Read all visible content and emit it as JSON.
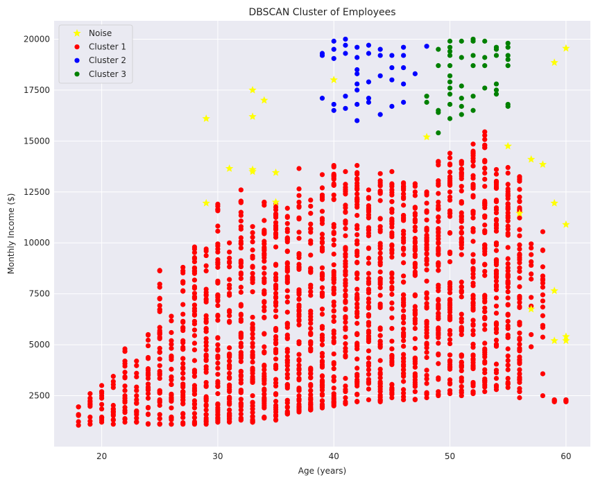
{
  "chart_data": {
    "type": "scatter",
    "title": "DBSCAN Cluster of Employees",
    "xlabel": "Age (years)",
    "ylabel": "Monthly Income ($)",
    "xlim": [
      15.9,
      62.1
    ],
    "ylim": [
      0,
      20900
    ],
    "xticks": [
      20,
      30,
      40,
      50,
      60
    ],
    "yticks": [
      2500,
      5000,
      7500,
      10000,
      12500,
      15000,
      17500,
      20000
    ],
    "grid": true,
    "legend_position": "top-left",
    "series": [
      {
        "name": "Noise",
        "marker": "star",
        "color": "#ffff00",
        "points": [
          [
            29,
            16100
          ],
          [
            33,
            17500
          ],
          [
            34,
            17000
          ],
          [
            33,
            16200
          ],
          [
            40,
            18000
          ],
          [
            31,
            13650
          ],
          [
            33,
            13500
          ],
          [
            33,
            13600
          ],
          [
            35,
            13450
          ],
          [
            29,
            11950
          ],
          [
            35,
            12000
          ],
          [
            48,
            15200
          ],
          [
            55,
            14750
          ],
          [
            57,
            14100
          ],
          [
            58,
            13850
          ],
          [
            56,
            11450
          ],
          [
            59,
            11950
          ],
          [
            60,
            10900
          ],
          [
            59,
            18850
          ],
          [
            60,
            19550
          ],
          [
            59,
            7650
          ],
          [
            57,
            6750
          ],
          [
            59,
            5200
          ],
          [
            60,
            5400
          ],
          [
            60,
            5200
          ]
        ]
      },
      {
        "name": "Cluster 1",
        "marker": "circle",
        "color": "#ff0000",
        "generated": {
          "xmin": 18,
          "xmax": 60,
          "upper_envelope": [
            [
              18,
              1950
            ],
            [
              19,
              2600
            ],
            [
              20,
              3000
            ],
            [
              21,
              3450
            ],
            [
              22,
              4800
            ],
            [
              23,
              4200
            ],
            [
              24,
              5500
            ],
            [
              25,
              8650
            ],
            [
              26,
              6400
            ],
            [
              27,
              8800
            ],
            [
              28,
              9800
            ],
            [
              29,
              9700
            ],
            [
              30,
              11900
            ],
            [
              31,
              10000
            ],
            [
              32,
              12600
            ],
            [
              33,
              10800
            ],
            [
              34,
              12000
            ],
            [
              35,
              11900
            ],
            [
              36,
              11700
            ],
            [
              37,
              13650
            ],
            [
              38,
              12100
            ],
            [
              39,
              13350
            ],
            [
              40,
              13800
            ],
            [
              41,
              13500
            ],
            [
              42,
              13800
            ],
            [
              43,
              12600
            ],
            [
              44,
              13400
            ],
            [
              45,
              13500
            ],
            [
              46,
              12950
            ],
            [
              47,
              12900
            ],
            [
              48,
              12500
            ],
            [
              49,
              14000
            ],
            [
              50,
              14400
            ],
            [
              51,
              14000
            ],
            [
              52,
              14850
            ],
            [
              53,
              15450
            ],
            [
              54,
              13600
            ],
            [
              55,
              13700
            ],
            [
              56,
              13250
            ],
            [
              57,
              9950
            ],
            [
              58,
              10550
            ],
            [
              59,
              2300
            ],
            [
              60,
              2300
            ]
          ],
          "lower_envelope": [
            [
              18,
              1050
            ],
            [
              19,
              1100
            ],
            [
              20,
              1200
            ],
            [
              21,
              1100
            ],
            [
              22,
              1200
            ],
            [
              23,
              1200
            ],
            [
              24,
              1100
            ],
            [
              25,
              1100
            ],
            [
              26,
              1100
            ],
            [
              27,
              1100
            ],
            [
              28,
              1100
            ],
            [
              29,
              1100
            ],
            [
              30,
              1200
            ],
            [
              31,
              1200
            ],
            [
              32,
              1300
            ],
            [
              33,
              1200
            ],
            [
              34,
              1400
            ],
            [
              35,
              1300
            ],
            [
              36,
              1600
            ],
            [
              37,
              1700
            ],
            [
              38,
              1800
            ],
            [
              39,
              1900
            ],
            [
              40,
              2000
            ],
            [
              41,
              2100
            ],
            [
              42,
              2200
            ],
            [
              43,
              2300
            ],
            [
              44,
              2200
            ],
            [
              45,
              2400
            ],
            [
              46,
              2300
            ],
            [
              47,
              2300
            ],
            [
              48,
              2400
            ],
            [
              49,
              2500
            ],
            [
              50,
              2600
            ],
            [
              51,
              2500
            ],
            [
              52,
              2600
            ],
            [
              53,
              2700
            ],
            [
              54,
              2800
            ],
            [
              55,
              2900
            ],
            [
              56,
              2400
            ],
            [
              57,
              4900
            ],
            [
              58,
              2500
            ],
            [
              59,
              2200
            ],
            [
              60,
              2200
            ]
          ]
        }
      },
      {
        "name": "Cluster 2",
        "marker": "circle",
        "color": "#0000ff",
        "points": [
          [
            39,
            17100
          ],
          [
            39,
            19200
          ],
          [
            39,
            19300
          ],
          [
            40,
            16500
          ],
          [
            40,
            16800
          ],
          [
            40,
            19500
          ],
          [
            40,
            19900
          ],
          [
            40,
            19050
          ],
          [
            41,
            16600
          ],
          [
            41,
            17200
          ],
          [
            41,
            19300
          ],
          [
            41,
            19700
          ],
          [
            41,
            20000
          ],
          [
            42,
            16000
          ],
          [
            42,
            16800
          ],
          [
            42,
            17500
          ],
          [
            42,
            17800
          ],
          [
            42,
            18300
          ],
          [
            42,
            18500
          ],
          [
            42,
            19100
          ],
          [
            42,
            19600
          ],
          [
            43,
            16900
          ],
          [
            43,
            17100
          ],
          [
            43,
            19700
          ],
          [
            43,
            17900
          ],
          [
            43,
            19300
          ],
          [
            44,
            16300
          ],
          [
            44,
            18200
          ],
          [
            44,
            19200
          ],
          [
            44,
            19500
          ],
          [
            45,
            16700
          ],
          [
            45,
            18000
          ],
          [
            45,
            19200
          ],
          [
            45,
            18600
          ],
          [
            46,
            16900
          ],
          [
            46,
            19200
          ],
          [
            46,
            19600
          ],
          [
            46,
            17800
          ],
          [
            46,
            18600
          ],
          [
            47,
            18300
          ],
          [
            48,
            19650
          ]
        ]
      },
      {
        "name": "Cluster 3",
        "marker": "circle",
        "color": "#008000",
        "points": [
          [
            48,
            16900
          ],
          [
            48,
            17200
          ],
          [
            49,
            15400
          ],
          [
            49,
            16400
          ],
          [
            49,
            16500
          ],
          [
            49,
            18700
          ],
          [
            49,
            19500
          ],
          [
            50,
            16100
          ],
          [
            50,
            16800
          ],
          [
            50,
            17300
          ],
          [
            50,
            17600
          ],
          [
            50,
            17900
          ],
          [
            50,
            18200
          ],
          [
            50,
            18700
          ],
          [
            50,
            19200
          ],
          [
            50,
            19400
          ],
          [
            50,
            19600
          ],
          [
            50,
            19900
          ],
          [
            51,
            16300
          ],
          [
            51,
            16700
          ],
          [
            51,
            17100
          ],
          [
            51,
            17700
          ],
          [
            51,
            19100
          ],
          [
            51,
            19900
          ],
          [
            52,
            16500
          ],
          [
            52,
            17200
          ],
          [
            52,
            18700
          ],
          [
            52,
            19200
          ],
          [
            52,
            19900
          ],
          [
            52,
            20000
          ],
          [
            53,
            17600
          ],
          [
            53,
            18700
          ],
          [
            53,
            19100
          ],
          [
            53,
            19900
          ],
          [
            54,
            17300
          ],
          [
            54,
            17500
          ],
          [
            54,
            17800
          ],
          [
            54,
            19200
          ],
          [
            54,
            19500
          ],
          [
            54,
            19600
          ],
          [
            55,
            16700
          ],
          [
            55,
            16800
          ],
          [
            55,
            18700
          ],
          [
            55,
            19000
          ],
          [
            55,
            19200
          ],
          [
            55,
            19600
          ],
          [
            55,
            19800
          ]
        ]
      }
    ]
  }
}
